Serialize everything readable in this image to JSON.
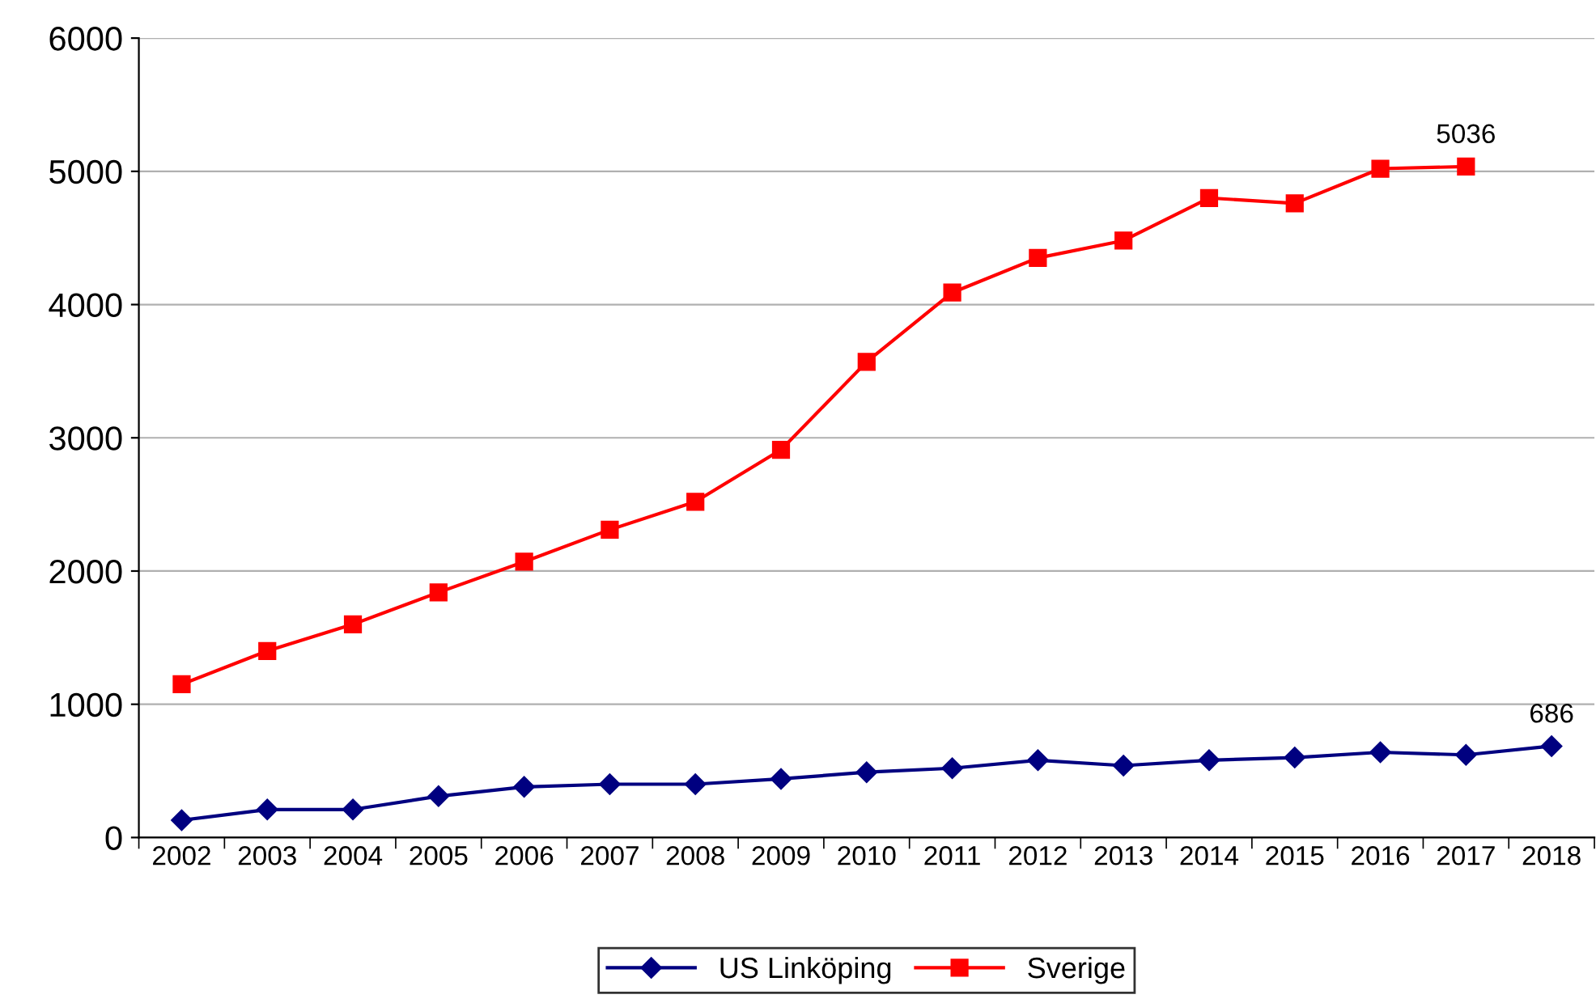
{
  "chart_data": {
    "type": "line",
    "categories": [
      "2002",
      "2003",
      "2004",
      "2005",
      "2006",
      "2007",
      "2008",
      "2009",
      "2010",
      "2011",
      "2012",
      "2013",
      "2014",
      "2015",
      "2016",
      "2017",
      "2018"
    ],
    "series": [
      {
        "name": "US Linköping",
        "color": "#000080",
        "marker": "diamond",
        "values": [
          130,
          210,
          210,
          310,
          380,
          400,
          400,
          440,
          490,
          520,
          580,
          540,
          580,
          600,
          640,
          620,
          686
        ],
        "value_labels": [
          null,
          null,
          null,
          null,
          null,
          null,
          null,
          null,
          null,
          null,
          null,
          null,
          null,
          null,
          null,
          null,
          "686"
        ]
      },
      {
        "name": "Sverige",
        "color": "#ff0000",
        "marker": "square",
        "values": [
          1150,
          1400,
          1600,
          1840,
          2070,
          2310,
          2520,
          2910,
          3570,
          4090,
          4350,
          4480,
          4800,
          4760,
          5020,
          5036,
          null
        ],
        "value_labels": [
          null,
          null,
          null,
          null,
          null,
          null,
          null,
          null,
          null,
          null,
          null,
          null,
          null,
          null,
          null,
          "5036",
          null
        ]
      }
    ],
    "ylim": [
      0,
      6000
    ],
    "yticks": [
      0,
      1000,
      2000,
      3000,
      4000,
      5000,
      6000
    ],
    "grid": "y",
    "legend": "bottom",
    "line_style": "solid"
  }
}
